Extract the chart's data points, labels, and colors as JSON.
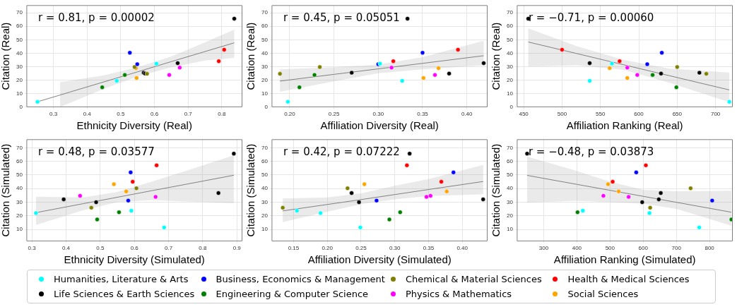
{
  "chart_data": [
    {
      "type": "scatter",
      "xlabel": "Ethnicity Diversity (Real)",
      "ylabel": "Citation (Real)",
      "xlim": [
        0.221,
        0.86
      ],
      "xticks": [
        0.3,
        0.4,
        0.5,
        0.6,
        0.7,
        0.8
      ],
      "ylim": [
        0,
        75.5
      ],
      "yticks": [
        0,
        10,
        20,
        30,
        40,
        50,
        60,
        70
      ],
      "grid": true,
      "legend": "bottom",
      "marker": "circle",
      "annotations": [
        "r = 0.81, p = 0.00002"
      ],
      "series": [
        {
          "name": "Humanities, Literature & Arts",
          "color": "#00ffff",
          "x": [
            0.253,
            0.488,
            0.606
          ],
          "values": [
            3.8,
            19.4,
            32.2
          ]
        },
        {
          "name": "Business, Economics & Management",
          "color": "#0000ff",
          "x": [
            0.527,
            0.549
          ],
          "values": [
            40.3,
            31.8
          ]
        },
        {
          "name": "Chemical & Material Sciences",
          "color": "#808000",
          "x": [
            0.541,
            0.578
          ],
          "values": [
            29.7,
            24.6
          ]
        },
        {
          "name": "Health & Medical Sciences",
          "color": "#ff0000",
          "x": [
            0.791,
            0.807
          ],
          "values": [
            34,
            42.6
          ]
        },
        {
          "name": "Life Sciences & Earth Sciences",
          "color": "#000000",
          "x": [
            0.568,
            0.572,
            0.669,
            0.837
          ],
          "values": [
            25.4,
            24.8,
            32.6,
            65.7
          ]
        },
        {
          "name": "Engineering & Computer Science",
          "color": "#008000",
          "x": [
            0.445,
            0.512
          ],
          "values": [
            14.6,
            23.8
          ]
        },
        {
          "name": "Physics & Mathematics",
          "color": "#ff00ff",
          "x": [
            0.644,
            0.675
          ],
          "values": [
            23.8,
            29.2
          ]
        },
        {
          "name": "Social Sciences",
          "color": "#ffa500",
          "x": [
            0.545,
            0.547
          ],
          "values": [
            28.8,
            21.5
          ]
        },
        {
          "type": "line",
          "marker": "none",
          "color": "#808080",
          "x": [
            0.253,
            0.32,
            0.35,
            0.45,
            0.55,
            0.65,
            0.75,
            0.837
          ],
          "values": [
            3.8,
            8.8,
            11.1,
            18.6,
            26.1,
            33.7,
            41.2,
            47.7
          ],
          "upper": [
            null,
            18.5,
            19.5,
            23.5,
            29.5,
            37.5,
            48,
            57.5
          ],
          "lower": [
            null,
            0,
            3,
            13.5,
            22.5,
            29.5,
            34.5,
            36.5
          ]
        }
      ]
    },
    {
      "type": "scatter",
      "xlabel": "Affiliation Diversity (Real)",
      "ylabel": "Citation (Real)",
      "xlim": [
        0.18,
        0.423
      ],
      "xticks": [
        {
          "value": 0.2,
          "label": "0.20"
        },
        {
          "value": 0.25,
          "label": "0.25"
        },
        {
          "value": 0.3,
          "label": "0.30"
        },
        {
          "value": 0.35,
          "label": "0.35"
        },
        {
          "value": 0.4,
          "label": "0.40"
        }
      ],
      "ylim": [
        0,
        75.5
      ],
      "yticks": [
        0,
        10,
        20,
        30,
        40,
        50,
        60,
        70
      ],
      "grid": true,
      "legend": "bottom",
      "marker": "circle",
      "annotations": [
        "r = 0.45, p = 0.05051"
      ],
      "series": [
        {
          "name": "Humanities, Literature & Arts",
          "color": "#00ffff",
          "x": [
            0.198,
            0.327,
            0.302
          ],
          "values": [
            3.8,
            19.4,
            32.2
          ]
        },
        {
          "name": "Business, Economics & Management",
          "color": "#0000ff",
          "x": [
            0.35,
            0.3
          ],
          "values": [
            40.3,
            31.8
          ]
        },
        {
          "name": "Chemical & Material Sciences",
          "color": "#808000",
          "x": [
            0.234,
            0.189
          ],
          "values": [
            29.7,
            24.6
          ]
        },
        {
          "name": "Health & Medical Sciences",
          "color": "#ff0000",
          "x": [
            0.317,
            0.39
          ],
          "values": [
            34,
            42.6
          ]
        },
        {
          "name": "Life Sciences & Earth Sciences",
          "color": "#000000",
          "x": [
            0.27,
            0.38,
            0.419,
            0.333
          ],
          "values": [
            25.4,
            24.8,
            32.6,
            65.7
          ]
        },
        {
          "name": "Engineering & Computer Science",
          "color": "#008000",
          "x": [
            0.211,
            0.228
          ],
          "values": [
            14.6,
            23.8
          ]
        },
        {
          "name": "Physics & Mathematics",
          "color": "#ff00ff",
          "x": [
            0.364,
            0.315
          ],
          "values": [
            23.8,
            29.2
          ]
        },
        {
          "name": "Social Sciences",
          "color": "#ffa500",
          "x": [
            0.368,
            0.351
          ],
          "values": [
            28.8,
            21.5
          ]
        },
        {
          "type": "line",
          "marker": "none",
          "color": "#808080",
          "x": [
            0.189,
            0.25,
            0.3,
            0.35,
            0.419
          ],
          "values": [
            19.2,
            24.2,
            28.3,
            32.4,
            38.1
          ],
          "upper": [
            28,
            29.5,
            31.5,
            37,
            49.2
          ],
          "lower": [
            11.2,
            19,
            25,
            28,
            31
          ]
        }
      ]
    },
    {
      "type": "scatter",
      "xlabel": "Affiliation Ranking (Real)",
      "ylabel": "Citation (Real)",
      "xlim": [
        441.5,
        722
      ],
      "xticks": [
        450,
        500,
        550,
        600,
        650,
        700
      ],
      "ylim": [
        0,
        75.5
      ],
      "yticks": [
        0,
        10,
        20,
        30,
        40,
        50,
        60,
        70
      ],
      "grid": true,
      "legend": "bottom",
      "marker": "circle",
      "annotations": [
        "r = −0.71, p = 0.00060"
      ],
      "series": [
        {
          "name": "Humanities, Literature & Arts",
          "color": "#00ffff",
          "x": [
            718,
            536,
            565
          ],
          "values": [
            3.8,
            19.4,
            32.2
          ]
        },
        {
          "name": "Business, Economics & Management",
          "color": "#0000ff",
          "x": [
            630,
            611
          ],
          "values": [
            40.3,
            31.8
          ]
        },
        {
          "name": "Chemical & Material Sciences",
          "color": "#808000",
          "x": [
            650,
            688
          ],
          "values": [
            29.7,
            24.6
          ]
        },
        {
          "name": "Health & Medical Sciences",
          "color": "#ff0000",
          "x": [
            575,
            500
          ],
          "values": [
            34,
            42.6
          ]
        },
        {
          "name": "Life Sciences & Earth Sciences",
          "color": "#000000",
          "x": [
            679,
            629,
            536,
            456
          ],
          "values": [
            25.4,
            24.8,
            32.6,
            65.7
          ]
        },
        {
          "name": "Engineering & Computer Science",
          "color": "#008000",
          "x": [
            649,
            618
          ],
          "values": [
            14.6,
            23.8
          ]
        },
        {
          "name": "Physics & Mathematics",
          "color": "#ff00ff",
          "x": [
            598,
            585
          ],
          "values": [
            23.8,
            29.2
          ]
        },
        {
          "name": "Social Sciences",
          "color": "#ffa500",
          "x": [
            562,
            585
          ],
          "values": [
            28.8,
            21.5
          ]
        },
        {
          "type": "line",
          "marker": "none",
          "color": "#808080",
          "x": [
            456,
            520,
            580,
            640,
            718
          ],
          "values": [
            48.3,
            39.6,
            31.4,
            23.2,
            12.6
          ],
          "upper": [
            58.5,
            45,
            35,
            28.5,
            25.6
          ],
          "lower": [
            30,
            31,
            27.5,
            18,
            3.5
          ]
        }
      ]
    },
    {
      "type": "scatter",
      "xlabel": "Ethnicity Diversity (Simulated)",
      "ylabel": "Citation (Simulated)",
      "xlim": [
        0.285,
        0.915
      ],
      "xticks": [
        0.3,
        0.4,
        0.5,
        0.6,
        0.7,
        0.8,
        0.9
      ],
      "ylim": [
        1.5,
        76
      ],
      "yticks": [
        10,
        20,
        30,
        40,
        50,
        60,
        70
      ],
      "grid": true,
      "legend": "bottom",
      "marker": "circle",
      "annotations": [
        "r = 0.48, p = 0.03577"
      ],
      "series": [
        {
          "name": "Humanities, Literature & Arts",
          "color": "#00ffff",
          "x": [
            0.312,
            0.591,
            0.687
          ],
          "values": [
            22,
            23.7,
            11.4
          ]
        },
        {
          "name": "Business, Economics & Management",
          "color": "#0000ff",
          "x": [
            0.589,
            0.582
          ],
          "values": [
            51.9,
            31.2
          ]
        },
        {
          "name": "Chemical & Material Sciences",
          "color": "#808000",
          "x": [
            0.474,
            0.606
          ],
          "values": [
            25.9,
            40.2
          ]
        },
        {
          "name": "Health & Medical Sciences",
          "color": "#ff0000",
          "x": [
            0.665,
            0.595
          ],
          "values": [
            57.1,
            45
          ]
        },
        {
          "name": "Life Sciences & Earth Sciences",
          "color": "#000000",
          "x": [
            0.393,
            0.488,
            0.846,
            0.891
          ],
          "values": [
            32.1,
            30,
            36.7,
            65.7
          ]
        },
        {
          "name": "Engineering & Computer Science",
          "color": "#008000",
          "x": [
            0.491,
            0.555
          ],
          "values": [
            17.3,
            22.6
          ]
        },
        {
          "name": "Physics & Mathematics",
          "color": "#ff00ff",
          "x": [
            0.441,
            0.662
          ],
          "values": [
            34.7,
            33.9
          ]
        },
        {
          "name": "Social Sciences",
          "color": "#ffa500",
          "x": [
            0.54,
            0.576
          ],
          "values": [
            43.2,
            37.9
          ]
        },
        {
          "type": "line",
          "marker": "none",
          "color": "#808080",
          "x": [
            0.312,
            0.45,
            0.55,
            0.65,
            0.75,
            0.891
          ],
          "values": [
            22.3,
            28.9,
            33.6,
            38.4,
            43.1,
            49.8
          ],
          "upper": [
            34,
            33.5,
            37.5,
            45,
            53,
            64.5
          ],
          "lower": [
            13.3,
            24,
            30,
            31.5,
            30.5,
            29.2
          ]
        }
      ]
    },
    {
      "type": "scatter",
      "xlabel": "Affiliation Diversity (Simulated)",
      "ylabel": "Citation (Simulated)",
      "xlim": [
        0.118,
        0.437
      ],
      "xticks": [
        {
          "value": 0.15,
          "label": "0.15"
        },
        {
          "value": 0.2,
          "label": "0.20"
        },
        {
          "value": 0.25,
          "label": "0.25"
        },
        {
          "value": 0.3,
          "label": "0.30"
        },
        {
          "value": 0.35,
          "label": "0.35"
        },
        {
          "value": 0.4,
          "label": "0.40"
        }
      ],
      "ylim": [
        1.5,
        76
      ],
      "yticks": [
        10,
        20,
        30,
        40,
        50,
        60,
        70
      ],
      "grid": true,
      "legend": "bottom",
      "marker": "circle",
      "annotations": [
        "r = 0.42, p = 0.07222"
      ],
      "series": [
        {
          "name": "Humanities, Literature & Arts",
          "color": "#00ffff",
          "x": [
            0.19,
            0.155,
            0.249
          ],
          "values": [
            22,
            23.7,
            11.4
          ]
        },
        {
          "name": "Business, Economics & Management",
          "color": "#0000ff",
          "x": [
            0.387,
            0.273
          ],
          "values": [
            51.9,
            31.2
          ]
        },
        {
          "name": "Chemical & Material Sciences",
          "color": "#808000",
          "x": [
            0.134,
            0.23
          ],
          "values": [
            25.9,
            40.2
          ]
        },
        {
          "name": "Health & Medical Sciences",
          "color": "#ff0000",
          "x": [
            0.318,
            0.369
          ],
          "values": [
            57.1,
            45
          ]
        },
        {
          "name": "Life Sciences & Earth Sciences",
          "color": "#000000",
          "x": [
            0.431,
            0.247,
            0.236,
            0.322
          ],
          "values": [
            32.1,
            30,
            36.7,
            65.7
          ]
        },
        {
          "name": "Engineering & Computer Science",
          "color": "#008000",
          "x": [
            0.292,
            0.308
          ],
          "values": [
            17.3,
            22.6
          ]
        },
        {
          "name": "Physics & Mathematics",
          "color": "#ff00ff",
          "x": [
            0.353,
            0.347
          ],
          "values": [
            34.7,
            33.9
          ]
        },
        {
          "name": "Social Sciences",
          "color": "#ffa500",
          "x": [
            0.255,
            0.377
          ],
          "values": [
            43.2,
            37.9
          ]
        },
        {
          "type": "line",
          "marker": "none",
          "color": "#808080",
          "x": [
            0.134,
            0.2,
            0.25,
            0.3,
            0.35,
            0.431
          ],
          "values": [
            23.6,
            28.3,
            31.9,
            35.6,
            39.3,
            45.2
          ],
          "upper": [
            32.7,
            33.5,
            36.5,
            42,
            47,
            57.3
          ],
          "lower": [
            15.3,
            23,
            28.5,
            32,
            34.5,
            35.8
          ]
        }
      ]
    },
    {
      "type": "scatter",
      "xlabel": "Affiliation Ranking (Simulated)",
      "ylabel": "Citation (Simulated)",
      "xlim": [
        220,
        869
      ],
      "xticks": [
        300,
        400,
        500,
        600,
        700,
        800
      ],
      "ylim": [
        1.5,
        76
      ],
      "yticks": [
        10,
        20,
        30,
        40,
        50,
        60,
        70
      ],
      "grid": true,
      "legend": "bottom",
      "marker": "circle",
      "annotations": [
        "r = −0.48, p = 0.03873"
      ],
      "series": [
        {
          "name": "Humanities, Literature & Arts",
          "color": "#00ffff",
          "x": [
            619,
            418,
            769
          ],
          "values": [
            22,
            23.7,
            11.4
          ]
        },
        {
          "name": "Business, Economics & Management",
          "color": "#0000ff",
          "x": [
            579,
            808
          ],
          "values": [
            51.9,
            31.2
          ]
        },
        {
          "name": "Chemical & Material Sciences",
          "color": "#808000",
          "x": [
            621,
            743
          ],
          "values": [
            25.9,
            40.2
          ]
        },
        {
          "name": "Health & Medical Sciences",
          "color": "#ff0000",
          "x": [
            608,
            508
          ],
          "values": [
            57.1,
            45
          ]
        },
        {
          "name": "Life Sciences & Earth Sciences",
          "color": "#000000",
          "x": [
            647,
            597,
            653,
            250
          ],
          "values": [
            32.1,
            30,
            36.7,
            65.7
          ]
        },
        {
          "name": "Engineering & Computer Science",
          "color": "#008000",
          "x": [
            866,
            402
          ],
          "values": [
            17.3,
            22.6
          ]
        },
        {
          "name": "Physics & Mathematics",
          "color": "#ff00ff",
          "x": [
            480,
            556
          ],
          "values": [
            34.7,
            33.9
          ]
        },
        {
          "name": "Social Sciences",
          "color": "#ffa500",
          "x": [
            494,
            526
          ],
          "values": [
            43.2,
            37.9
          ]
        },
        {
          "type": "line",
          "marker": "none",
          "color": "#808080",
          "x": [
            250,
            400,
            500,
            600,
            700,
            866
          ],
          "values": [
            49.7,
            43.1,
            38.7,
            34.3,
            29.9,
            22.6
          ],
          "upper": [
            63.5,
            53,
            45,
            39,
            38,
            38.4
          ],
          "lower": [
            29.7,
            31,
            30,
            29,
            25,
            12.7
          ]
        }
      ]
    }
  ]
}
